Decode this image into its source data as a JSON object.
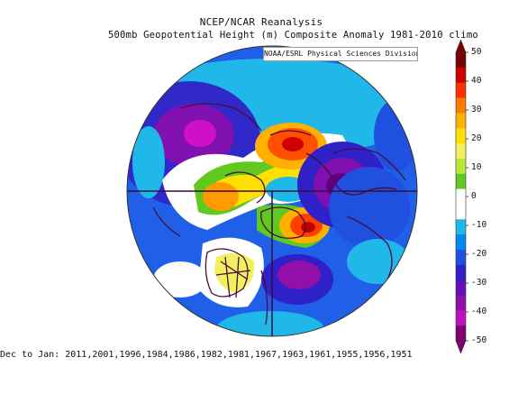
{
  "title": {
    "line1": "NCEP/NCAR Reanalysis",
    "line2": "500mb Geopotential Height (m) Composite Anomaly 1981-2010 climo"
  },
  "credit": "NOAA/ESRL Physical Sciences Division",
  "footer": "Dec to Jan: 2011,2001,1996,1984,1986,1982,1981,1967,1963,1961,1955,1956,1951",
  "colorbar": {
    "ticks": [
      "50",
      "40",
      "30",
      "20",
      "10",
      "0",
      "-10",
      "-20",
      "-30",
      "-40",
      "-50"
    ],
    "colors": [
      "#7a0000",
      "#c80000",
      "#ff3000",
      "#ff7a00",
      "#ffb000",
      "#ffe000",
      "#f0f060",
      "#b8e838",
      "#60c820",
      "#ffffff",
      "#ffffff",
      "#20b8e8",
      "#0088f0",
      "#2050e0",
      "#3020c8",
      "#6010b8",
      "#9010a8",
      "#c010c0",
      "#800070"
    ]
  }
}
